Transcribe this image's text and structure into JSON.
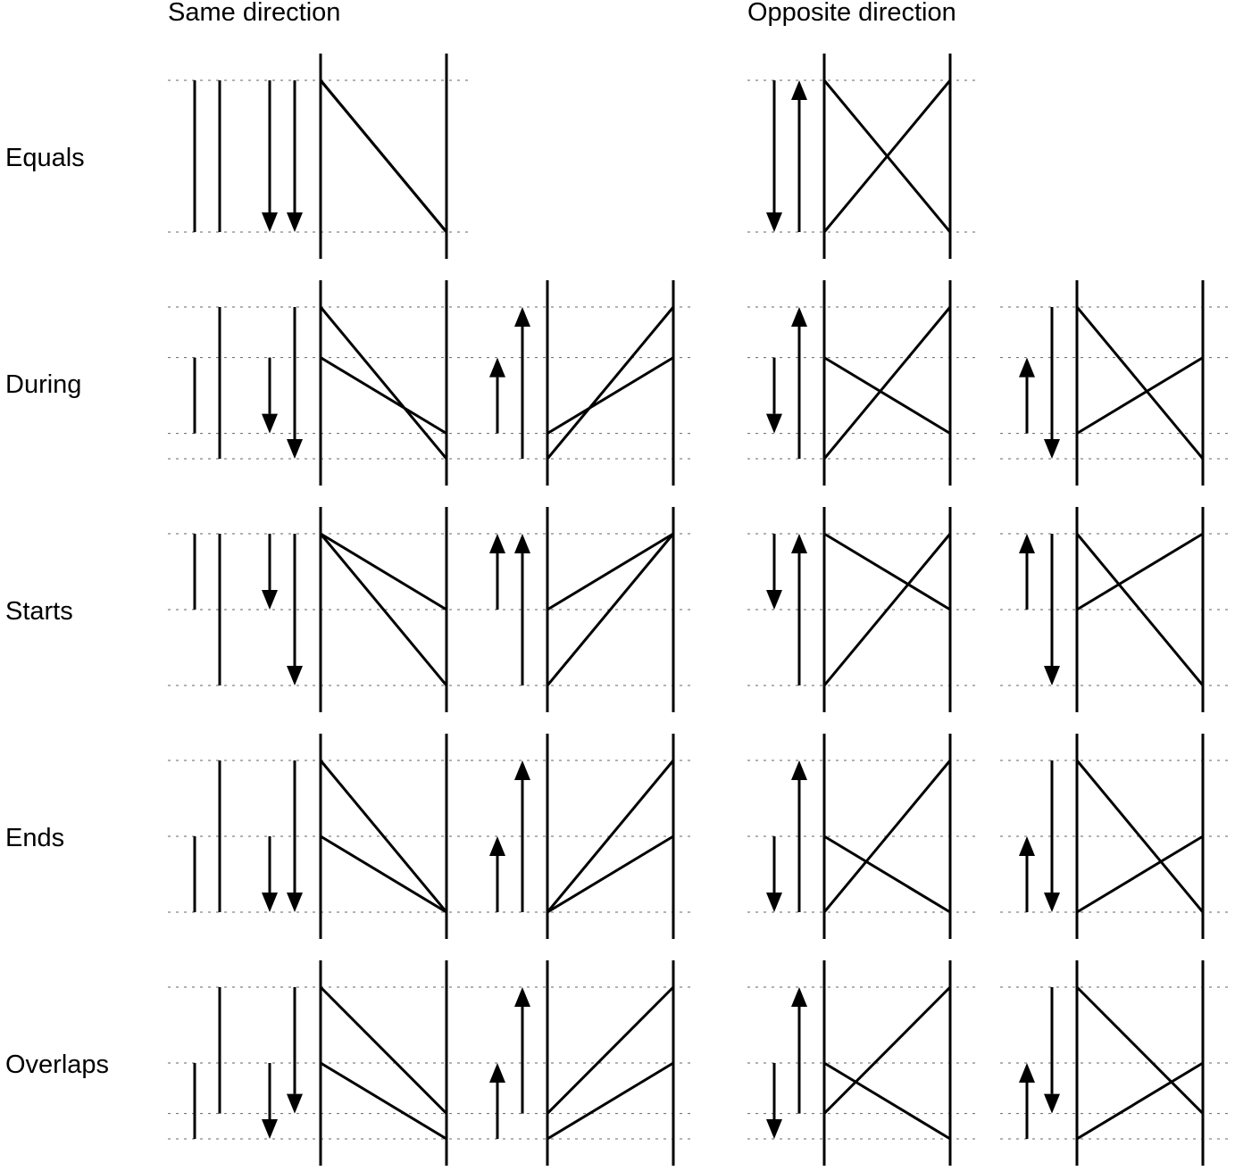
{
  "headers": {
    "same": "Same direction",
    "opposite": "Opposite direction"
  },
  "rows": [
    {
      "label": "Equals",
      "same_a": {
        "bars": [
          [
            0,
            1
          ],
          [
            0,
            1
          ]
        ],
        "arrows": [
          {
            "from": 0,
            "to": 1
          },
          {
            "from": 0,
            "to": 1
          }
        ]
      },
      "same_b": null,
      "opposite_a": {
        "arrows": [
          {
            "from": 0,
            "to": 1
          },
          {
            "from": 1,
            "to": 0
          }
        ]
      },
      "opposite_b": null
    },
    {
      "label": "During",
      "same_a": {
        "bars": [
          [
            0.333,
            0.833
          ],
          [
            0,
            1
          ]
        ],
        "arrows": [
          {
            "from": 0.333,
            "to": 0.833
          },
          {
            "from": 0,
            "to": 1
          }
        ]
      },
      "same_b": {
        "arrows": [
          {
            "from": 0.833,
            "to": 0.333
          },
          {
            "from": 1,
            "to": 0
          }
        ]
      },
      "opposite_a": {
        "arrows": [
          {
            "from": 0.333,
            "to": 0.833
          },
          {
            "from": 1,
            "to": 0
          }
        ]
      },
      "opposite_b": {
        "arrows": [
          {
            "from": 0.833,
            "to": 0.333
          },
          {
            "from": 0,
            "to": 1
          }
        ]
      }
    },
    {
      "label": "Starts",
      "same_a": {
        "bars": [
          [
            0,
            0.5
          ],
          [
            0,
            1
          ]
        ],
        "arrows": [
          {
            "from": 0,
            "to": 0.5
          },
          {
            "from": 0,
            "to": 1
          }
        ]
      },
      "same_b": {
        "arrows": [
          {
            "from": 0.5,
            "to": 0
          },
          {
            "from": 1,
            "to": 0
          }
        ]
      },
      "opposite_a": {
        "arrows": [
          {
            "from": 0,
            "to": 0.5
          },
          {
            "from": 1,
            "to": 0
          }
        ]
      },
      "opposite_b": {
        "arrows": [
          {
            "from": 0.5,
            "to": 0
          },
          {
            "from": 0,
            "to": 1
          }
        ]
      }
    },
    {
      "label": "Ends",
      "same_a": {
        "bars": [
          [
            0.5,
            1
          ],
          [
            0,
            1
          ]
        ],
        "arrows": [
          {
            "from": 0.5,
            "to": 1
          },
          {
            "from": 0,
            "to": 1
          }
        ]
      },
      "same_b": {
        "arrows": [
          {
            "from": 1,
            "to": 0.5
          },
          {
            "from": 1,
            "to": 0
          }
        ]
      },
      "opposite_a": {
        "arrows": [
          {
            "from": 0.5,
            "to": 1
          },
          {
            "from": 1,
            "to": 0
          }
        ]
      },
      "opposite_b": {
        "arrows": [
          {
            "from": 1,
            "to": 0.5
          },
          {
            "from": 0,
            "to": 1
          }
        ]
      }
    },
    {
      "label": "Overlaps",
      "same_a": {
        "bars": [
          [
            0.5,
            1
          ],
          [
            0,
            0.833
          ]
        ],
        "arrows": [
          {
            "from": 0.5,
            "to": 1
          },
          {
            "from": 0,
            "to": 0.833
          }
        ]
      },
      "same_b": {
        "arrows": [
          {
            "from": 1,
            "to": 0.5
          },
          {
            "from": 0.833,
            "to": 0
          }
        ]
      },
      "opposite_a": {
        "arrows": [
          {
            "from": 0.5,
            "to": 1
          },
          {
            "from": 0.833,
            "to": 0
          }
        ]
      },
      "opposite_b": {
        "arrows": [
          {
            "from": 1,
            "to": 0.5
          },
          {
            "from": 0,
            "to": 0.833
          }
        ]
      }
    }
  ]
}
